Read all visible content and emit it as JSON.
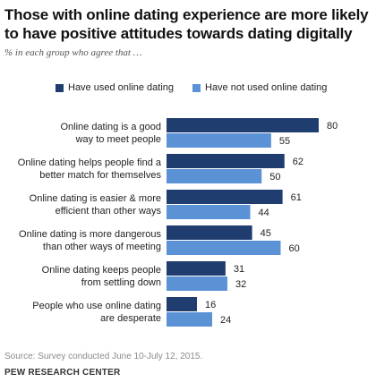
{
  "title": "Those with online dating experience are more likely to have positive attitudes towards dating digitally",
  "subtitle": "% in each group who agree that …",
  "source": "Source: Survey conducted June 10-July 12, 2015.",
  "org": "PEW RESEARCH CENTER",
  "colors": {
    "used": "#1f3d6e",
    "not_used": "#5b92d6"
  },
  "chart_data": {
    "type": "bar",
    "orientation": "horizontal",
    "categories": [
      [
        "Online dating is a good",
        "way to meet people"
      ],
      [
        "Online dating helps people find a",
        "better match for themselves"
      ],
      [
        "Online dating is easier & more",
        "efficient than other ways"
      ],
      [
        "Online dating is more dangerous",
        "than other ways of meeting"
      ],
      [
        "Online dating keeps people",
        "from settling down"
      ],
      [
        "People who use online dating",
        "are desperate"
      ]
    ],
    "series": [
      {
        "name": "Have used online dating",
        "values": [
          80,
          62,
          61,
          45,
          31,
          16
        ]
      },
      {
        "name": "Have not used online dating",
        "values": [
          55,
          50,
          44,
          60,
          32,
          24
        ]
      }
    ],
    "xlim": [
      0,
      100
    ],
    "legend": "top",
    "grid": false
  }
}
